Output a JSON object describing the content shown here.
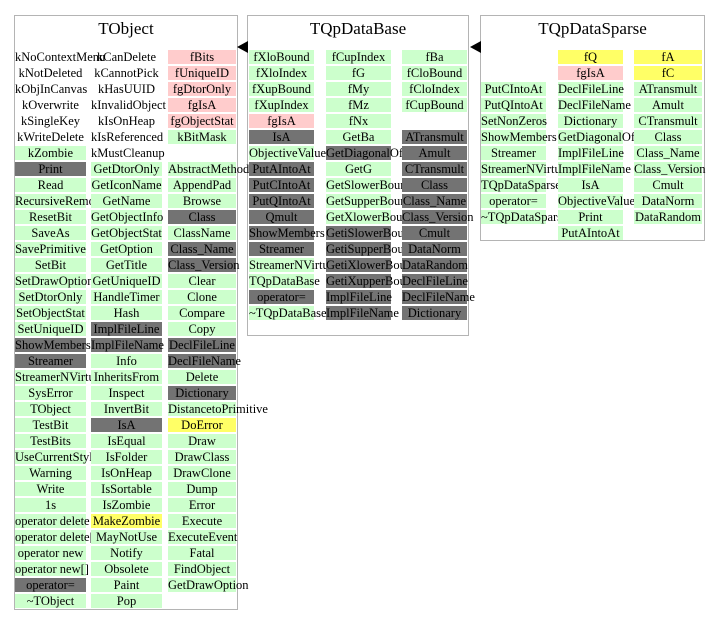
{
  "colors": {
    "public_method": "#ccffcc",
    "inherited_or_virtual": "#737373",
    "data_member": "#ffcccc",
    "highlighted": "#ffff66",
    "box_border": "#b4b4b4"
  },
  "classes": [
    {
      "title": "TObject",
      "columns": [
        [
          {
            "label": "kNoContextMenu",
            "c": "n"
          },
          {
            "label": "kNotDeleted",
            "c": "n"
          },
          {
            "label": "kObjInCanvas",
            "c": "n"
          },
          {
            "label": "kOverwrite",
            "c": "n"
          },
          {
            "label": "kSingleKey",
            "c": "n"
          },
          {
            "label": "kWriteDelete",
            "c": "n"
          },
          {
            "label": "kZombie",
            "c": "g"
          },
          {
            "label": "Print",
            "c": "d"
          },
          {
            "label": "Read",
            "c": "g"
          },
          {
            "label": "RecursiveRemove",
            "c": "g"
          },
          {
            "label": "ResetBit",
            "c": "g"
          },
          {
            "label": "SaveAs",
            "c": "g"
          },
          {
            "label": "SavePrimitive",
            "c": "g"
          },
          {
            "label": "SetBit",
            "c": "g"
          },
          {
            "label": "SetDrawOption",
            "c": "g"
          },
          {
            "label": "SetDtorOnly",
            "c": "g"
          },
          {
            "label": "SetObjectStat",
            "c": "g"
          },
          {
            "label": "SetUniqueID",
            "c": "g"
          },
          {
            "label": "ShowMembers",
            "c": "d"
          },
          {
            "label": "Streamer",
            "c": "d"
          },
          {
            "label": "StreamerNVirtual",
            "c": "g"
          },
          {
            "label": "SysError",
            "c": "g"
          },
          {
            "label": "TObject",
            "c": "g"
          },
          {
            "label": "TestBit",
            "c": "g"
          },
          {
            "label": "TestBits",
            "c": "g"
          },
          {
            "label": "UseCurrentStyle",
            "c": "g"
          },
          {
            "label": "Warning",
            "c": "g"
          },
          {
            "label": "Write",
            "c": "g"
          },
          {
            "label": "1s",
            "c": "g"
          },
          {
            "label": "operator delete",
            "c": "g"
          },
          {
            "label": "operator delete[]",
            "c": "g"
          },
          {
            "label": "operator new",
            "c": "g"
          },
          {
            "label": "operator new[]",
            "c": "g"
          },
          {
            "label": "operator=",
            "c": "d"
          },
          {
            "label": "~TObject",
            "c": "g"
          }
        ],
        [
          {
            "label": "kCanDelete",
            "c": "n"
          },
          {
            "label": "kCannotPick",
            "c": "n"
          },
          {
            "label": "kHasUUID",
            "c": "n"
          },
          {
            "label": "kInvalidObject",
            "c": "n"
          },
          {
            "label": "kIsOnHeap",
            "c": "n"
          },
          {
            "label": "kIsReferenced",
            "c": "n"
          },
          {
            "label": "kMustCleanup",
            "c": "n"
          },
          {
            "label": "GetDtorOnly",
            "c": "g"
          },
          {
            "label": "GetIconName",
            "c": "g"
          },
          {
            "label": "GetName",
            "c": "g"
          },
          {
            "label": "GetObjectInfo",
            "c": "g"
          },
          {
            "label": "GetObjectStat",
            "c": "g"
          },
          {
            "label": "GetOption",
            "c": "g"
          },
          {
            "label": "GetTitle",
            "c": "g"
          },
          {
            "label": "GetUniqueID",
            "c": "g"
          },
          {
            "label": "HandleTimer",
            "c": "g"
          },
          {
            "label": "Hash",
            "c": "g"
          },
          {
            "label": "ImplFileLine",
            "c": "d"
          },
          {
            "label": "ImplFileName",
            "c": "d"
          },
          {
            "label": "Info",
            "c": "g"
          },
          {
            "label": "InheritsFrom",
            "c": "g"
          },
          {
            "label": "Inspect",
            "c": "g"
          },
          {
            "label": "InvertBit",
            "c": "g"
          },
          {
            "label": "IsA",
            "c": "d"
          },
          {
            "label": "IsEqual",
            "c": "g"
          },
          {
            "label": "IsFolder",
            "c": "g"
          },
          {
            "label": "IsOnHeap",
            "c": "g"
          },
          {
            "label": "IsSortable",
            "c": "g"
          },
          {
            "label": "IsZombie",
            "c": "g"
          },
          {
            "label": "MakeZombie",
            "c": "y"
          },
          {
            "label": "MayNotUse",
            "c": "g"
          },
          {
            "label": "Notify",
            "c": "g"
          },
          {
            "label": "Obsolete",
            "c": "g"
          },
          {
            "label": "Paint",
            "c": "g"
          },
          {
            "label": "Pop",
            "c": "g"
          }
        ],
        [
          {
            "label": "fBits",
            "c": "p"
          },
          {
            "label": "fUniqueID",
            "c": "p"
          },
          {
            "label": "fgDtorOnly",
            "c": "p"
          },
          {
            "label": "fgIsA",
            "c": "p"
          },
          {
            "label": "fgObjectStat",
            "c": "p"
          },
          {
            "label": "kBitMask",
            "c": "g"
          },
          {
            "label": "",
            "c": "n"
          },
          {
            "label": "AbstractMethod",
            "c": "g"
          },
          {
            "label": "AppendPad",
            "c": "g"
          },
          {
            "label": "Browse",
            "c": "g"
          },
          {
            "label": "Class",
            "c": "d"
          },
          {
            "label": "ClassName",
            "c": "g"
          },
          {
            "label": "Class_Name",
            "c": "d"
          },
          {
            "label": "Class_Version",
            "c": "d"
          },
          {
            "label": "Clear",
            "c": "g"
          },
          {
            "label": "Clone",
            "c": "g"
          },
          {
            "label": "Compare",
            "c": "g"
          },
          {
            "label": "Copy",
            "c": "g"
          },
          {
            "label": "DeclFileLine",
            "c": "d"
          },
          {
            "label": "DeclFileName",
            "c": "d"
          },
          {
            "label": "Delete",
            "c": "g"
          },
          {
            "label": "Dictionary",
            "c": "d"
          },
          {
            "label": "DistancetoPrimitive",
            "c": "g"
          },
          {
            "label": "DoError",
            "c": "y"
          },
          {
            "label": "Draw",
            "c": "g"
          },
          {
            "label": "DrawClass",
            "c": "g"
          },
          {
            "label": "DrawClone",
            "c": "g"
          },
          {
            "label": "Dump",
            "c": "g"
          },
          {
            "label": "Error",
            "c": "g"
          },
          {
            "label": "Execute",
            "c": "g"
          },
          {
            "label": "ExecuteEvent",
            "c": "g"
          },
          {
            "label": "Fatal",
            "c": "g"
          },
          {
            "label": "FindObject",
            "c": "g"
          },
          {
            "label": "GetDrawOption",
            "c": "g"
          }
        ]
      ]
    },
    {
      "title": "TQpDataBase",
      "columns": [
        [
          {
            "label": "fXloBound",
            "c": "g"
          },
          {
            "label": "fXloIndex",
            "c": "g"
          },
          {
            "label": "fXupBound",
            "c": "g"
          },
          {
            "label": "fXupIndex",
            "c": "g"
          },
          {
            "label": "fgIsA",
            "c": "p"
          },
          {
            "label": "IsA",
            "c": "d"
          },
          {
            "label": "ObjectiveValue",
            "c": "g"
          },
          {
            "label": "PutAIntoAt",
            "c": "d"
          },
          {
            "label": "PutCIntoAt",
            "c": "d"
          },
          {
            "label": "PutQIntoAt",
            "c": "d"
          },
          {
            "label": "Qmult",
            "c": "d"
          },
          {
            "label": "ShowMembers",
            "c": "d"
          },
          {
            "label": "Streamer",
            "c": "d"
          },
          {
            "label": "StreamerNVirtual",
            "c": "g"
          },
          {
            "label": "TQpDataBase",
            "c": "g"
          },
          {
            "label": "operator=",
            "c": "d"
          },
          {
            "label": "~TQpDataBase",
            "c": "g"
          }
        ],
        [
          {
            "label": "fCupIndex",
            "c": "g"
          },
          {
            "label": "fG",
            "c": "g"
          },
          {
            "label": "fMy",
            "c": "g"
          },
          {
            "label": "fMz",
            "c": "g"
          },
          {
            "label": "fNx",
            "c": "g"
          },
          {
            "label": "GetBa",
            "c": "g"
          },
          {
            "label": "GetDiagonalOfQ",
            "c": "d"
          },
          {
            "label": "GetG",
            "c": "g"
          },
          {
            "label": "GetSlowerBound",
            "c": "g"
          },
          {
            "label": "GetSupperBound",
            "c": "g"
          },
          {
            "label": "GetXlowerBound",
            "c": "g"
          },
          {
            "label": "GetiSlowerBound",
            "c": "d"
          },
          {
            "label": "GetiSupperBound",
            "c": "d"
          },
          {
            "label": "GetiXlowerBound",
            "c": "d"
          },
          {
            "label": "GetiXupperBound",
            "c": "d"
          },
          {
            "label": "ImplFileLine",
            "c": "d"
          },
          {
            "label": "ImplFileName",
            "c": "d"
          }
        ],
        [
          {
            "label": "fBa",
            "c": "g"
          },
          {
            "label": "fCloBound",
            "c": "g"
          },
          {
            "label": "fCloIndex",
            "c": "g"
          },
          {
            "label": "fCupBound",
            "c": "g"
          },
          {
            "label": "",
            "c": "n"
          },
          {
            "label": "ATransmult",
            "c": "d"
          },
          {
            "label": "Amult",
            "c": "d"
          },
          {
            "label": "CTransmult",
            "c": "d"
          },
          {
            "label": "Class",
            "c": "d"
          },
          {
            "label": "Class_Name",
            "c": "d"
          },
          {
            "label": "Class_Version",
            "c": "d"
          },
          {
            "label": "Cmult",
            "c": "d"
          },
          {
            "label": "DataNorm",
            "c": "d"
          },
          {
            "label": "DataRandom",
            "c": "d"
          },
          {
            "label": "DeclFileLine",
            "c": "d"
          },
          {
            "label": "DeclFileName",
            "c": "d"
          },
          {
            "label": "Dictionary",
            "c": "d"
          }
        ]
      ]
    },
    {
      "title": "TQpDataSparse",
      "columns": [
        [
          {
            "label": "",
            "c": "n"
          },
          {
            "label": "",
            "c": "n"
          },
          {
            "label": "PutCIntoAt",
            "c": "g"
          },
          {
            "label": "PutQIntoAt",
            "c": "g"
          },
          {
            "label": "SetNonZeros",
            "c": "g"
          },
          {
            "label": "ShowMembers",
            "c": "g"
          },
          {
            "label": "Streamer",
            "c": "g"
          },
          {
            "label": "StreamerNVirtual",
            "c": "g"
          },
          {
            "label": "TQpDataSparse",
            "c": "g"
          },
          {
            "label": "operator=",
            "c": "g"
          },
          {
            "label": "~TQpDataSparse",
            "c": "g"
          }
        ],
        [
          {
            "label": "fQ",
            "c": "y"
          },
          {
            "label": "fgIsA",
            "c": "p"
          },
          {
            "label": "DeclFileLine",
            "c": "g"
          },
          {
            "label": "DeclFileName",
            "c": "g"
          },
          {
            "label": "Dictionary",
            "c": "g"
          },
          {
            "label": "GetDiagonalOfQ",
            "c": "g"
          },
          {
            "label": "ImplFileLine",
            "c": "g"
          },
          {
            "label": "ImplFileName",
            "c": "g"
          },
          {
            "label": "IsA",
            "c": "g"
          },
          {
            "label": "ObjectiveValue",
            "c": "g"
          },
          {
            "label": "Print",
            "c": "g"
          },
          {
            "label": "PutAIntoAt",
            "c": "g"
          }
        ],
        [
          {
            "label": "fA",
            "c": "y"
          },
          {
            "label": "fC",
            "c": "y"
          },
          {
            "label": "ATransmult",
            "c": "g"
          },
          {
            "label": "Amult",
            "c": "g"
          },
          {
            "label": "CTransmult",
            "c": "g"
          },
          {
            "label": "Class",
            "c": "g"
          },
          {
            "label": "Class_Name",
            "c": "g"
          },
          {
            "label": "Class_Version",
            "c": "g"
          },
          {
            "label": "Cmult",
            "c": "g"
          },
          {
            "label": "DataNorm",
            "c": "g"
          },
          {
            "label": "DataRandom",
            "c": "g"
          }
        ]
      ]
    }
  ],
  "relations": [
    {
      "from": "TQpDataBase",
      "to": "TObject",
      "kind": "inherits"
    },
    {
      "from": "TQpDataSparse",
      "to": "TQpDataBase",
      "kind": "inherits"
    }
  ]
}
